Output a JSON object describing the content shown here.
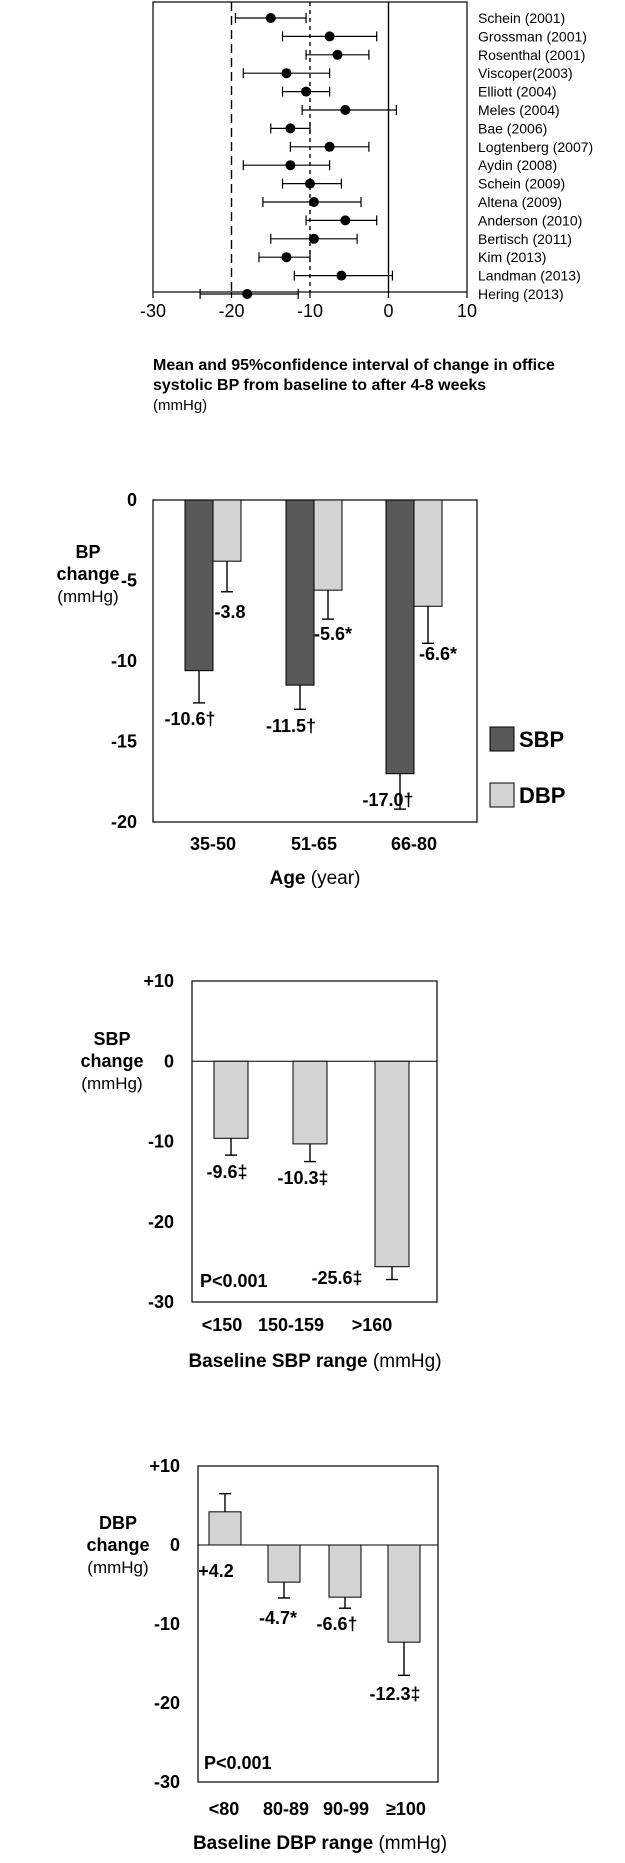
{
  "chart_data": [
    {
      "type": "scatter",
      "subtype": "forest-plot",
      "studies": [
        {
          "label": "Schein (2001)",
          "mean": -15.0,
          "lo": -19.5,
          "hi": -10.5
        },
        {
          "label": "Grossman (2001)",
          "mean": -7.5,
          "lo": -13.5,
          "hi": -1.5
        },
        {
          "label": "Rosenthal (2001)",
          "mean": -6.5,
          "lo": -10.5,
          "hi": -2.5
        },
        {
          "label": "Viscoper(2003)",
          "mean": -13.0,
          "lo": -18.5,
          "hi": -7.5
        },
        {
          "label": "Elliott (2004)",
          "mean": -10.5,
          "lo": -13.5,
          "hi": -7.5
        },
        {
          "label": "Meles (2004)",
          "mean": -5.5,
          "lo": -11.0,
          "hi": 1.0
        },
        {
          "label": "Bae (2006)",
          "mean": -12.5,
          "lo": -15.0,
          "hi": -10.0
        },
        {
          "label": "Logtenberg (2007)",
          "mean": -7.5,
          "lo": -12.5,
          "hi": -2.5
        },
        {
          "label": "Aydin (2008)",
          "mean": -12.5,
          "lo": -18.5,
          "hi": -7.5
        },
        {
          "label": "Schein (2009)",
          "mean": -10.0,
          "lo": -13.5,
          "hi": -6.0
        },
        {
          "label": "Altena (2009)",
          "mean": -9.5,
          "lo": -16.0,
          "hi": -3.5
        },
        {
          "label": "Anderson (2010)",
          "mean": -5.5,
          "lo": -10.5,
          "hi": -1.5
        },
        {
          "label": "Bertisch (2011)",
          "mean": -9.5,
          "lo": -15.0,
          "hi": -4.0
        },
        {
          "label": "Kim (2013)",
          "mean": -13.0,
          "lo": -16.5,
          "hi": -10.0
        },
        {
          "label": "Landman (2013)",
          "mean": -6.0,
          "lo": -12.0,
          "hi": 0.5
        },
        {
          "label": "Hering (2013)",
          "mean": -18.0,
          "lo": -24.0,
          "hi": -11.5
        }
      ],
      "xlim": [
        -30,
        10
      ],
      "xticks": [
        "-30",
        "-20",
        "-10",
        "0",
        "10"
      ],
      "reference_lines": [
        -20,
        -10,
        0
      ],
      "caption_bold": "Mean and 95%confidence interval of change in office systolic BP from baseline to after 4-8 weeks",
      "caption_unit": "(mmHg)"
    },
    {
      "type": "bar",
      "categories": [
        "35-50",
        "51-65",
        "66-80"
      ],
      "series": [
        {
          "name": "SBP",
          "color": "#595959",
          "values": [
            -10.6,
            -11.5,
            -17.0
          ],
          "err": [
            2.0,
            1.5,
            2.2
          ],
          "labels": [
            "-10.6†",
            "-11.5†",
            "-17.0†"
          ]
        },
        {
          "name": "DBP",
          "color": "#d4d4d4",
          "values": [
            -3.8,
            -5.6,
            -6.6
          ],
          "err": [
            1.9,
            1.8,
            2.3
          ],
          "labels": [
            "-3.8",
            "-5.6*",
            "-6.6*"
          ]
        }
      ],
      "ylim": [
        -20,
        0
      ],
      "yticks": [
        "0",
        "-5",
        "-10",
        "-15",
        "-20"
      ],
      "ylabel": [
        "BP",
        "change",
        "(mmHg)"
      ],
      "xlabel_bold": "Age",
      "xlabel_unit": "(year)"
    },
    {
      "type": "bar",
      "categories": [
        "<150",
        "150-159",
        ">160"
      ],
      "values": [
        -9.6,
        -10.3,
        -25.6
      ],
      "err": [
        2.1,
        2.2,
        1.6
      ],
      "labels": [
        "-9.6‡",
        "-10.3‡",
        "-25.6‡"
      ],
      "color": "#d4d4d4",
      "ylim": [
        -30,
        10
      ],
      "yticks": [
        "+10",
        "0",
        "-10",
        "-20",
        "-30"
      ],
      "ylabel": [
        "SBP",
        "change",
        "(mmHg)"
      ],
      "xlabel_bold": "Baseline SBP range",
      "xlabel_unit": "(mmHg)",
      "annotation": "P<0.001"
    },
    {
      "type": "bar",
      "categories": [
        "<80",
        "80-89",
        "90-99",
        "≥100"
      ],
      "values": [
        4.2,
        -4.7,
        -6.6,
        -12.3
      ],
      "err": [
        2.3,
        2.0,
        1.4,
        4.2
      ],
      "labels": [
        "+4.2",
        "-4.7*",
        "-6.6†",
        "-12.3‡"
      ],
      "color": "#d4d4d4",
      "ylim": [
        -30,
        10
      ],
      "yticks": [
        "+10",
        "0",
        "-10",
        "-20",
        "-30"
      ],
      "ylabel": [
        "DBP",
        "change",
        "(mmHg)"
      ],
      "xlabel_bold": "Baseline DBP range",
      "xlabel_unit": "(mmHg)",
      "annotation": "P<0.001"
    }
  ]
}
